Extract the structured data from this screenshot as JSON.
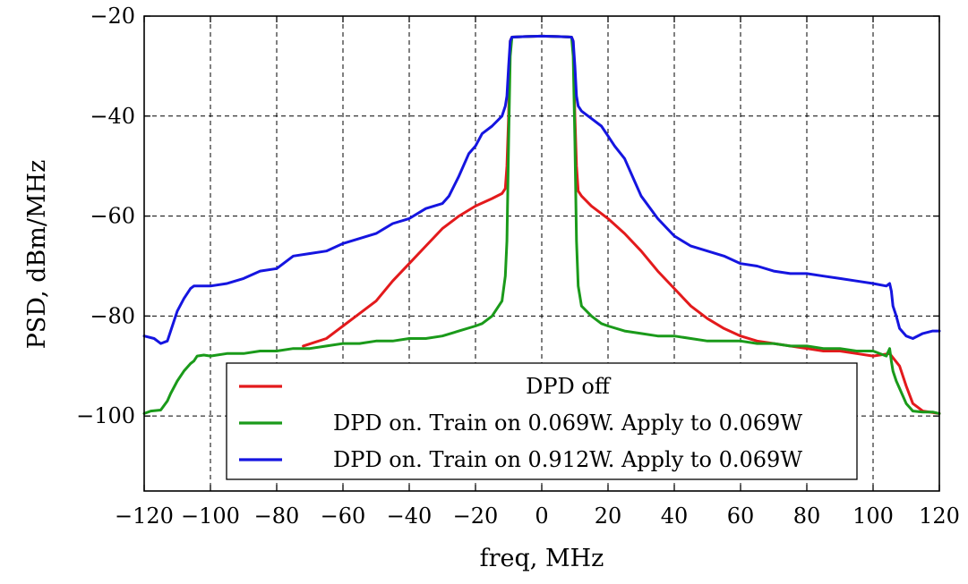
{
  "chart_data": {
    "type": "line",
    "title": "",
    "xlabel": "freq, MHz",
    "ylabel": "PSD, dBm/MHz",
    "xlim": [
      -120,
      120
    ],
    "ylim": [
      -115,
      -20
    ],
    "grid": true,
    "legend_position": "bottom-center",
    "x_ticks": [
      -120,
      -100,
      -80,
      -60,
      -40,
      -20,
      0,
      20,
      40,
      60,
      80,
      100,
      120
    ],
    "x_tick_labels": [
      "−120",
      "−100",
      "−80",
      "−60",
      "−40",
      "−20",
      "0",
      "20",
      "40",
      "60",
      "80",
      "100",
      "120"
    ],
    "y_ticks": [
      -100,
      -80,
      -60,
      -40,
      -20
    ],
    "y_tick_labels": [
      "−100",
      "−80",
      "−60",
      "−40",
      "−20"
    ],
    "series": [
      {
        "name": "DPD off",
        "color": "#e31a1c",
        "x": [
          -72,
          -65,
          -60,
          -55,
          -50,
          -45,
          -40,
          -35,
          -30,
          -25,
          -20,
          -15,
          -12,
          -11,
          -10.5,
          -10,
          -9.5,
          -9,
          -5,
          0,
          5,
          9,
          9.5,
          10,
          10.5,
          11,
          12,
          15,
          20,
          25,
          30,
          35,
          40,
          45,
          50,
          55,
          60,
          65,
          70,
          75,
          80,
          85,
          90,
          95,
          100,
          105,
          108,
          110,
          112,
          115,
          120
        ],
        "values": [
          -86,
          -84.5,
          -82,
          -79.5,
          -77,
          -73,
          -69.5,
          -66,
          -62.5,
          -60,
          -58,
          -56.5,
          -55.5,
          -54.5,
          -50,
          -40,
          -25,
          -24.2,
          -24.1,
          -24,
          -24.1,
          -24.2,
          -25,
          -40,
          -50,
          -55,
          -56,
          -58,
          -60.5,
          -63.5,
          -67,
          -71,
          -74.5,
          -78,
          -80.5,
          -82.5,
          -84,
          -85,
          -85.5,
          -86,
          -86.5,
          -87,
          -87,
          -87.5,
          -88,
          -87.5,
          -90,
          -94,
          -97.5,
          -99,
          -99.5
        ]
      },
      {
        "name": "DPD on. Train on 0.069W. Apply to 0.069W",
        "color": "#1a9a1a",
        "x": [
          -120,
          -118,
          -115,
          -113,
          -112,
          -110,
          -108,
          -106,
          -105,
          -104,
          -102,
          -100,
          -95,
          -90,
          -85,
          -80,
          -75,
          -70,
          -65,
          -60,
          -55,
          -50,
          -45,
          -40,
          -35,
          -30,
          -25,
          -20,
          -18,
          -15,
          -12,
          -11,
          -10.5,
          -10,
          -9.5,
          -9,
          -5,
          0,
          5,
          9,
          9.5,
          10,
          10.5,
          11,
          12,
          15,
          18,
          20,
          25,
          30,
          35,
          40,
          45,
          50,
          55,
          60,
          65,
          70,
          75,
          80,
          85,
          90,
          95,
          100,
          104,
          105,
          105.5,
          106,
          107,
          108,
          110,
          112,
          115,
          118,
          120
        ],
        "values": [
          -99.5,
          -99,
          -98.8,
          -97,
          -95.5,
          -93,
          -91,
          -89.5,
          -89,
          -88,
          -87.8,
          -88,
          -87.5,
          -87.5,
          -87,
          -87,
          -86.5,
          -86.5,
          -86,
          -85.5,
          -85.5,
          -85,
          -85,
          -84.5,
          -84.5,
          -84,
          -83,
          -82,
          -81.5,
          -80,
          -77,
          -72,
          -65,
          -45,
          -28,
          -24.2,
          -24.1,
          -24,
          -24.1,
          -24.2,
          -28,
          -45,
          -65,
          -74,
          -78,
          -80,
          -81.5,
          -82,
          -83,
          -83.5,
          -84,
          -84,
          -84.5,
          -85,
          -85,
          -85,
          -85.5,
          -85.5,
          -86,
          -86,
          -86.5,
          -86.5,
          -87,
          -87,
          -88,
          -86.5,
          -89,
          -91,
          -93,
          -94.5,
          -97.5,
          -99,
          -99.2,
          -99.2,
          -99.5
        ]
      },
      {
        "name": "DPD on. Train on 0.912W. Apply to 0.069W",
        "color": "#1515e0",
        "x": [
          -120,
          -117,
          -115,
          -113,
          -112,
          -110,
          -108,
          -106,
          -105,
          -104,
          -102,
          -100,
          -95,
          -90,
          -85,
          -80,
          -75,
          -70,
          -65,
          -60,
          -55,
          -50,
          -45,
          -40,
          -35,
          -30,
          -28,
          -25,
          -22,
          -20,
          -18,
          -15,
          -12,
          -11,
          -10.5,
          -10,
          -9.5,
          -9,
          -5,
          0,
          5,
          9,
          9.5,
          10,
          10.5,
          11,
          12,
          15,
          18,
          20,
          22,
          25,
          28,
          30,
          35,
          40,
          45,
          50,
          55,
          60,
          65,
          70,
          75,
          80,
          85,
          90,
          95,
          100,
          104,
          105,
          105.5,
          106,
          107,
          108,
          110,
          112,
          115,
          118,
          120
        ],
        "values": [
          -84,
          -84.5,
          -85.5,
          -85,
          -83,
          -79,
          -76.5,
          -74.5,
          -74,
          -74,
          -74,
          -74,
          -73.5,
          -72.5,
          -71,
          -70.5,
          -68,
          -67.5,
          -67,
          -65.5,
          -64.5,
          -63.5,
          -61.5,
          -60.5,
          -58.5,
          -57.5,
          -56,
          -52,
          -47.5,
          -46,
          -43.5,
          -42,
          -40,
          -38,
          -36,
          -30,
          -25,
          -24.2,
          -24.1,
          -24,
          -24.1,
          -24.2,
          -25,
          -30,
          -36,
          -38,
          -39,
          -40.5,
          -42,
          -44,
          -46,
          -48.5,
          -53,
          -56,
          -60.5,
          -64,
          -66,
          -67,
          -68,
          -69.5,
          -70,
          -71,
          -71.5,
          -71.5,
          -72,
          -72.5,
          -73,
          -73.5,
          -74,
          -73.5,
          -75,
          -78,
          -80,
          -82.5,
          -84,
          -84.5,
          -83.5,
          -83,
          -83
        ]
      }
    ]
  }
}
